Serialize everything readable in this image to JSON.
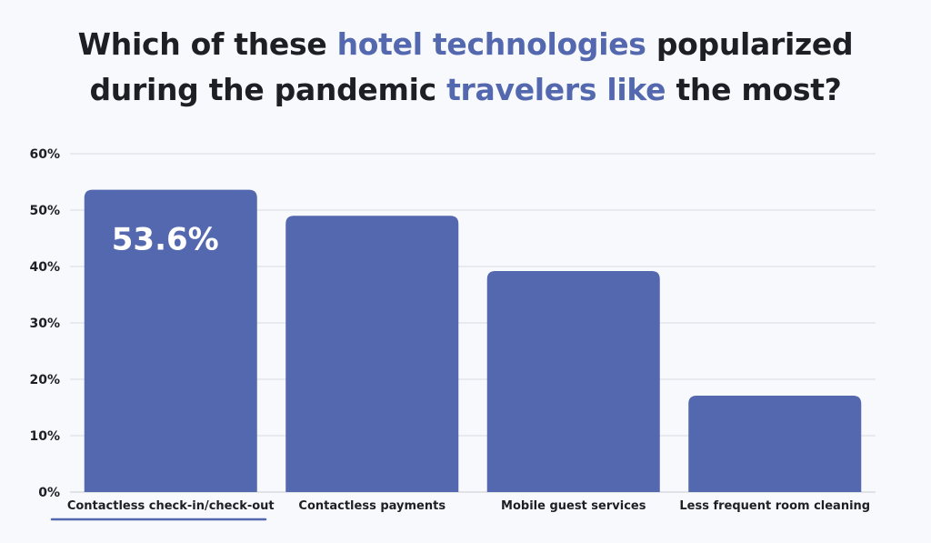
{
  "title": {
    "part1": "Which of these ",
    "highlight1": "hotel technologies",
    "part2": " popularized",
    "part3": "during the pandemic ",
    "highlight2": "travelers like",
    "part4": " the most?"
  },
  "colors": {
    "bar": "#5368ae",
    "highlight": "#5368ae",
    "text": "#1d1f25",
    "background": "#f8f9fc",
    "underline": "#5368ae"
  },
  "chart_data": {
    "type": "bar",
    "categories": [
      "Contactless check-in/check-out",
      "Contactless payments",
      "Mobile guest services",
      "Less frequent room cleaning"
    ],
    "values": [
      53.6,
      49,
      39.2,
      17.1
    ],
    "data_labels": [
      "53.6%",
      "",
      "",
      ""
    ],
    "yticks": [
      "0%",
      "10%",
      "20%",
      "30%",
      "40%",
      "50%",
      "60%"
    ],
    "ylim": [
      0,
      60
    ],
    "grid": true,
    "highlighted_category": "Contactless check-in/check-out"
  }
}
